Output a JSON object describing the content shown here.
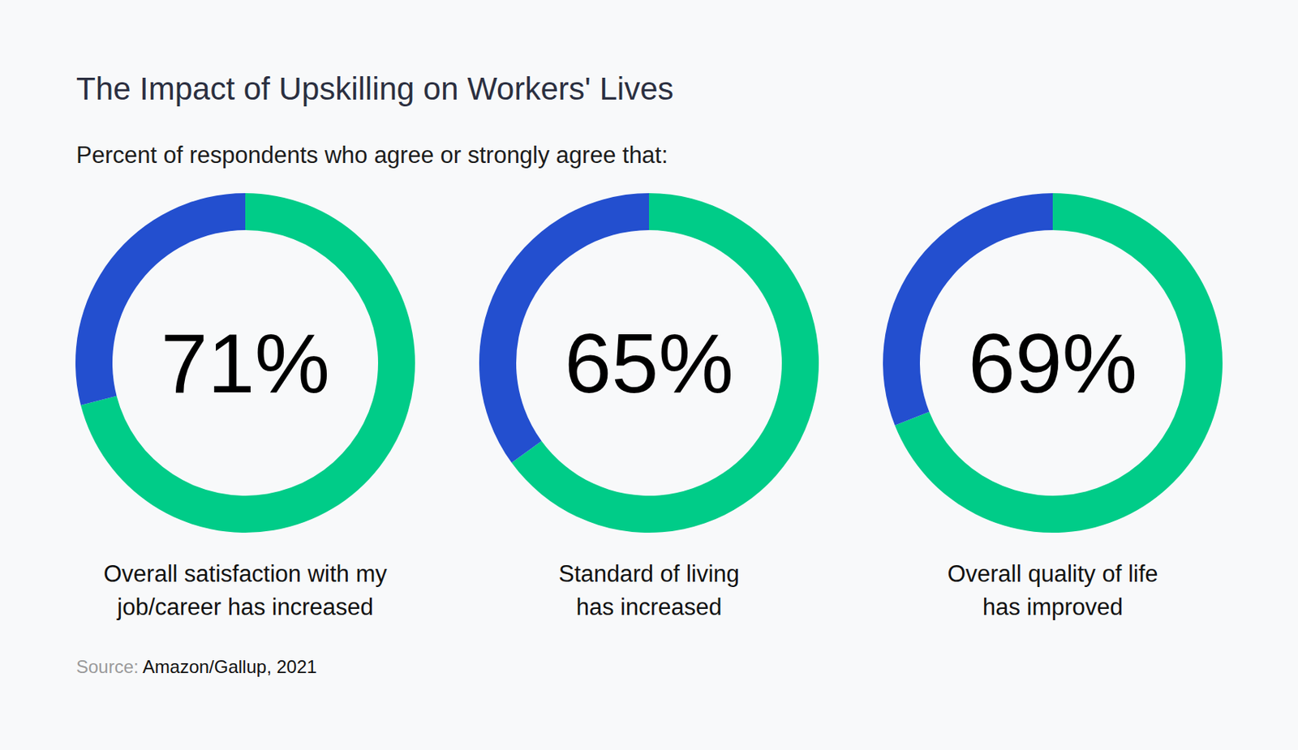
{
  "title": "The Impact of Upskilling on Workers' Lives",
  "subtitle": "Percent of respondents who agree or strongly agree that:",
  "source_label": "Source:",
  "source": "Amazon/Gallup, 2021",
  "chart_data": [
    {
      "type": "pie",
      "title": "Overall satisfaction with my\njob/career has increased",
      "values": [
        71,
        29
      ],
      "value_labels": [
        "71%",
        null
      ],
      "colors": [
        "#00cc88",
        "#234fcf"
      ]
    },
    {
      "type": "pie",
      "title": "Standard of living\nhas increased",
      "values": [
        65,
        35
      ],
      "value_labels": [
        "65%",
        null
      ],
      "colors": [
        "#00cc88",
        "#234fcf"
      ]
    },
    {
      "type": "pie",
      "title": "Overall quality of life\nhas improved",
      "values": [
        69,
        31
      ],
      "value_labels": [
        "69%",
        null
      ],
      "colors": [
        "#00cc88",
        "#234fcf"
      ]
    }
  ]
}
